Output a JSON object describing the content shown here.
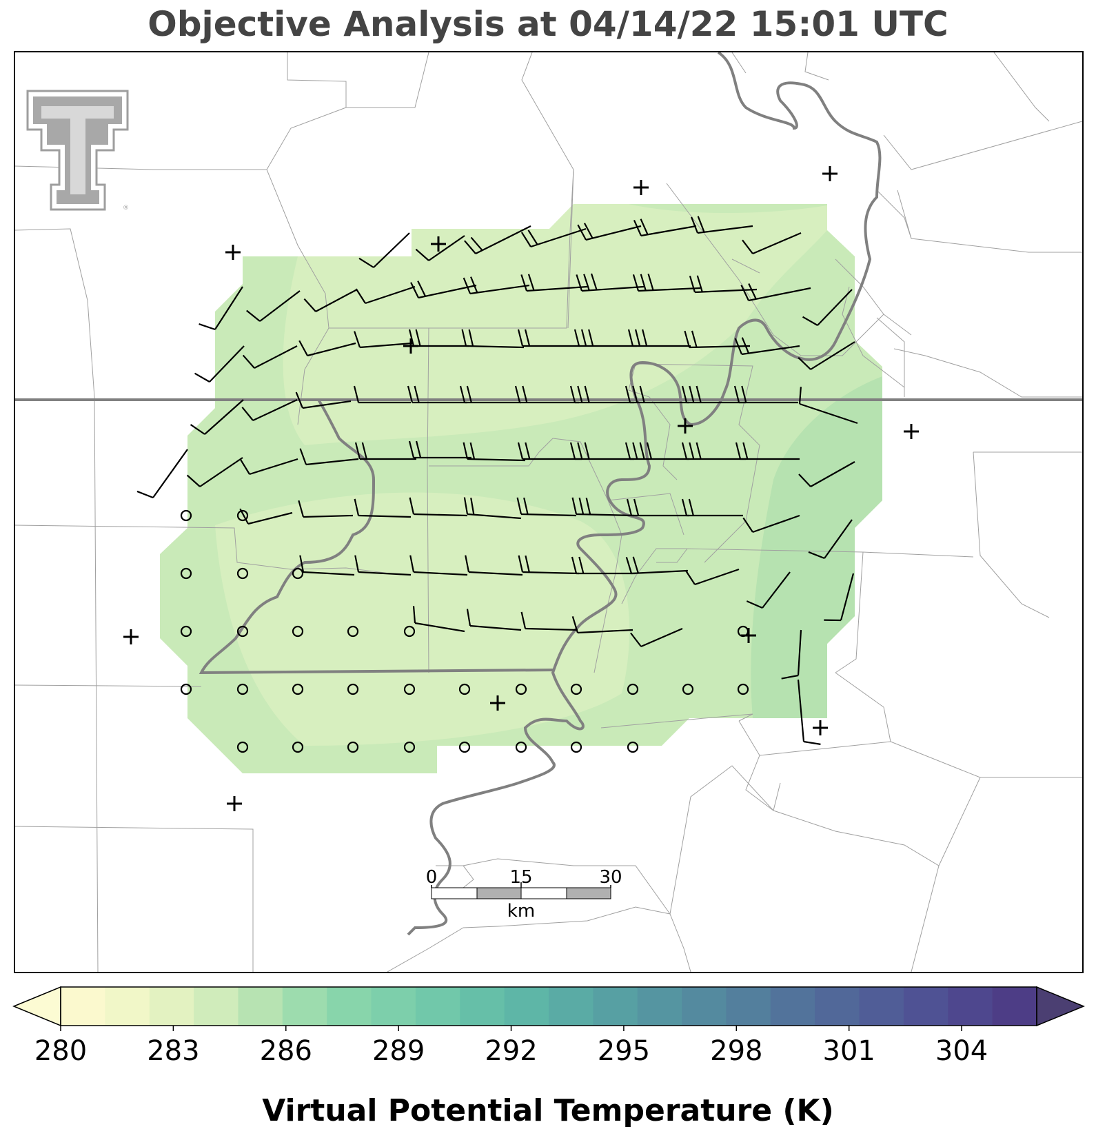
{
  "title": "Objective Analysis at 04/14/22 15:01 UTC",
  "logo": {
    "icon": "texas-tech-double-t-logo",
    "color": "#9e9e9e",
    "mark": "®"
  },
  "colorbar": {
    "label": "Virtual Potential Temperature (K)",
    "ticks": [
      "280",
      "283",
      "286",
      "289",
      "292",
      "295",
      "298",
      "301",
      "304"
    ],
    "min": 280,
    "max": 306,
    "extend": "both",
    "colors": [
      "#fbf9ce",
      "#f1f7c8",
      "#e3f2c1",
      "#d0ecbb",
      "#b7e3b2",
      "#9ddcae",
      "#88d5ab",
      "#7dcfab",
      "#71c8aa",
      "#66bfa8",
      "#5eb6a7",
      "#5aaba5",
      "#57a0a3",
      "#5595a1",
      "#548a9f",
      "#537f9d",
      "#52739b",
      "#516899",
      "#505d97",
      "#4f5294",
      "#4e478e",
      "#4d3d86"
    ],
    "under_color": "#fcfbd3",
    "over_color": "#4b3f72"
  },
  "scale_bar": {
    "labels": [
      "0",
      "15",
      "30"
    ],
    "unit": "km"
  },
  "analysis_field": {
    "variable": "virtual potential temperature",
    "units": "K",
    "shading": [
      {
        "level": "282-283 K",
        "color": "#d7efbd"
      },
      {
        "level": "283-284 K",
        "color": "#c7e9b8"
      },
      {
        "level": "284-285 K",
        "color": "#b5e2b1"
      }
    ]
  },
  "wind_barbs": {
    "style": "barb",
    "color": "#000000",
    "calm_symbol": "circle"
  },
  "stations": {
    "symbol": "+",
    "color": "#000000"
  },
  "boundaries": {
    "state_line_color": "#808080",
    "county_line_color": "#999999",
    "river_color": "#808080"
  }
}
